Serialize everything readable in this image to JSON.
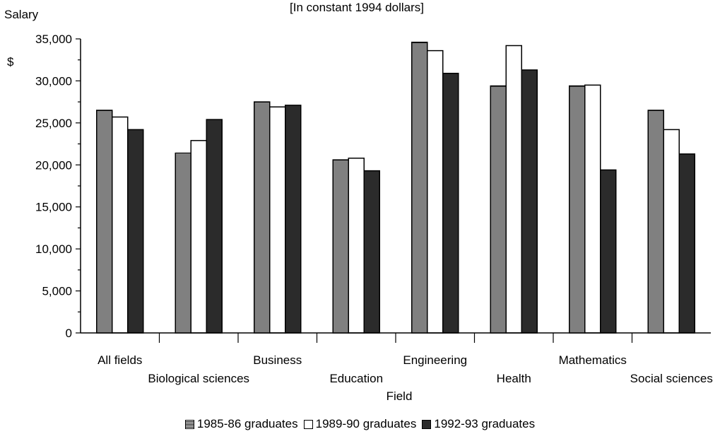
{
  "chart_data": {
    "type": "bar",
    "title": "[In constant 1994 dollars]",
    "ylabel": "Salary",
    "yunit": "$",
    "xlabel": "Field",
    "categories": [
      "All fields",
      "Biological sciences",
      "Business",
      "Education",
      "Engineering",
      "Health",
      "Mathematics",
      "Social sciences"
    ],
    "series": [
      {
        "name": "1985-86 graduates",
        "values": [
          26500,
          21400,
          27500,
          20600,
          34600,
          29400,
          29400,
          26500
        ]
      },
      {
        "name": "1989-90 graduates",
        "values": [
          25700,
          22900,
          26900,
          20800,
          33600,
          34200,
          29500,
          24200
        ]
      },
      {
        "name": "1992-93 graduates",
        "values": [
          24200,
          25400,
          27100,
          19300,
          30900,
          31300,
          19400,
          21300
        ]
      }
    ],
    "ylim": [
      0,
      35000
    ],
    "yticks": [
      "0",
      "5,000",
      "10,000",
      "15,000",
      "20,000",
      "25,000",
      "30,000",
      "35,000"
    ],
    "ytick_values": [
      0,
      5000,
      10000,
      15000,
      20000,
      25000,
      30000,
      35000
    ],
    "grid": false,
    "legend_position": "bottom",
    "series_styles": [
      "horizontal-hatch",
      "white",
      "dark"
    ],
    "colors": {
      "dark_fill": "#2b2b2b",
      "outline": "#000000",
      "white_fill": "#ffffff"
    }
  }
}
